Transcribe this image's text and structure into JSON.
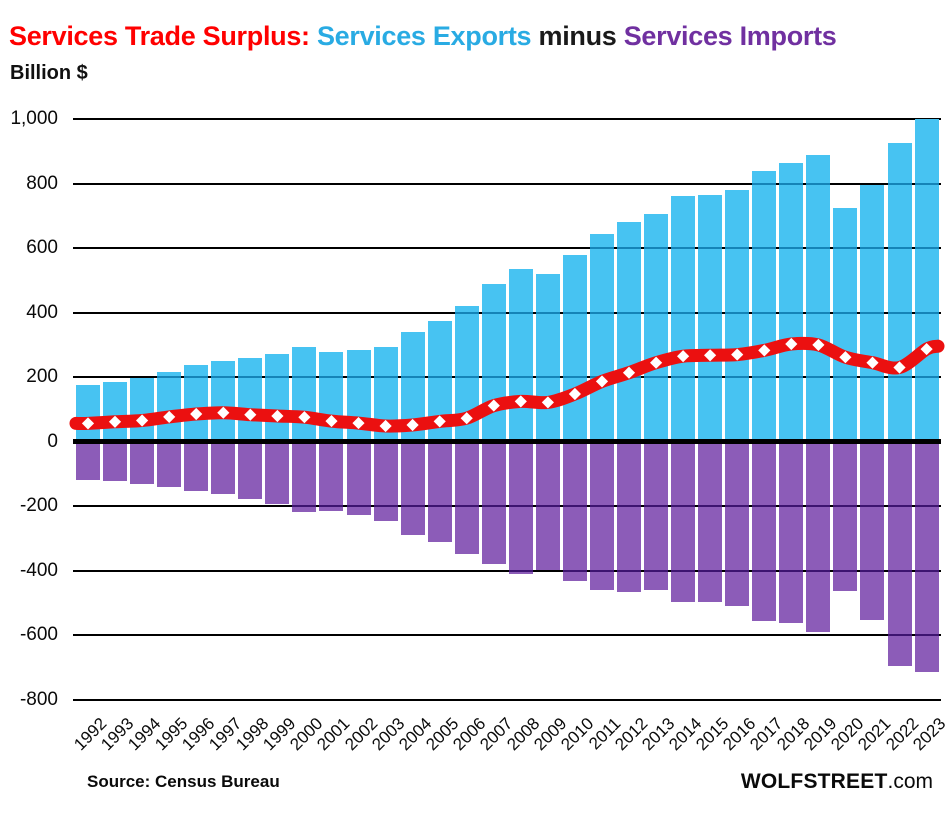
{
  "chart_data": {
    "type": "bar",
    "subtype": "diverging bars with smoothed line overlay",
    "title_segments": [
      {
        "text": "Services Trade Surplus: ",
        "color": "#FF0000"
      },
      {
        "text": "Services Exports",
        "color": "#29ABE3"
      },
      {
        "text": " minus ",
        "color": "#1A1A1A"
      },
      {
        "text": "Services Imports",
        "color": "#7030A0"
      }
    ],
    "subtitle": "Billion $",
    "ylabel": "Billion $",
    "x_years": [
      1992,
      1993,
      1994,
      1995,
      1996,
      1997,
      1998,
      1999,
      2000,
      2001,
      2002,
      2003,
      2004,
      2005,
      2006,
      2007,
      2008,
      2009,
      2010,
      2011,
      2012,
      2013,
      2014,
      2015,
      2016,
      2017,
      2018,
      2019,
      2020,
      2021,
      2022,
      2023
    ],
    "series": [
      {
        "name": "Services Exports",
        "type": "bar",
        "color": "#47C3F2",
        "gridline_overlay_color": "#1584B8",
        "values": [
          175,
          185,
          198,
          217,
          238,
          251,
          260,
          273,
          295,
          277,
          285,
          293,
          340,
          375,
          420,
          490,
          535,
          520,
          578,
          645,
          680,
          705,
          760,
          765,
          780,
          838,
          865,
          890,
          725,
          797,
          925,
          1000
        ]
      },
      {
        "name": "Services Imports",
        "type": "bar",
        "color": "#8C5CB8",
        "gridline_overlay_color": "#3D1470",
        "values": [
          -118,
          -123,
          -132,
          -140,
          -152,
          -161,
          -176,
          -193,
          -219,
          -213,
          -227,
          -244,
          -288,
          -312,
          -347,
          -378,
          -410,
          -398,
          -430,
          -458,
          -466,
          -460,
          -495,
          -497,
          -510,
          -555,
          -562,
          -590,
          -463,
          -552,
          -695,
          -713
        ]
      },
      {
        "name": "Services Trade Surplus",
        "type": "line",
        "color": "#EB1010",
        "marker": "white-diamond",
        "values": [
          57,
          62,
          66,
          77,
          86,
          90,
          84,
          80,
          76,
          64,
          58,
          49,
          52,
          63,
          73,
          112,
          125,
          122,
          148,
          187,
          214,
          245,
          265,
          268,
          270,
          283,
          303,
          300,
          262,
          245,
          230,
          287
        ]
      }
    ],
    "y_axis": {
      "min": -800,
      "max": 1000,
      "ticks": [
        {
          "value": 1000,
          "label": "1,000"
        },
        {
          "value": 800,
          "label": "800"
        },
        {
          "value": 600,
          "label": "600"
        },
        {
          "value": 400,
          "label": "400"
        },
        {
          "value": 200,
          "label": "200"
        },
        {
          "value": 0,
          "label": "0"
        },
        {
          "value": -200,
          "label": "-200"
        },
        {
          "value": -400,
          "label": "-400"
        },
        {
          "value": -600,
          "label": "-600"
        },
        {
          "value": -800,
          "label": "-800"
        }
      ]
    },
    "grid": "horizontal black gridlines, thick black zero axis",
    "legend": "color-coded in title",
    "source_note": "Source: Census Bureau",
    "branding": {
      "bold": "WOLFSTREET",
      "suffix": ".com"
    }
  }
}
